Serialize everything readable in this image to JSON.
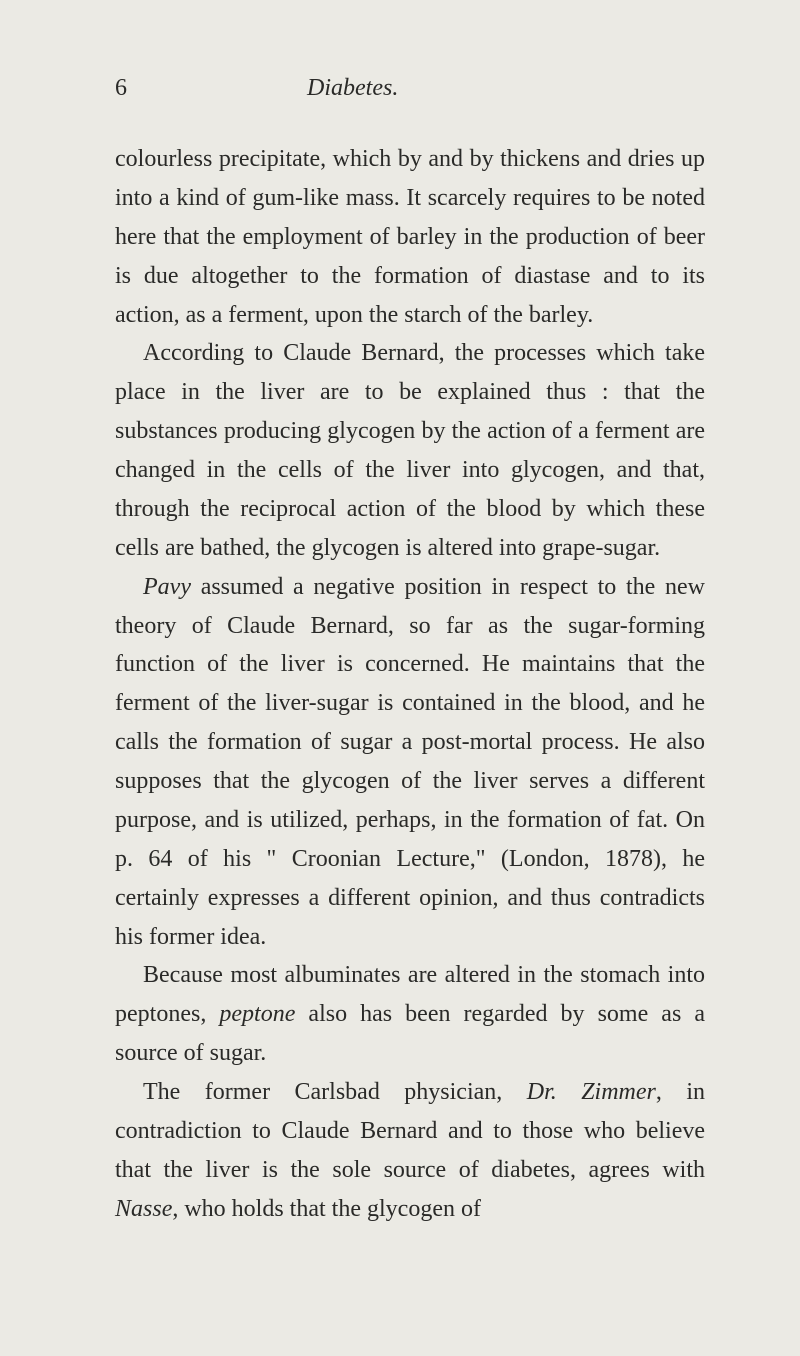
{
  "page": {
    "number": "6",
    "title": "Diabetes.",
    "background_color": "#ebeae4",
    "text_color": "#2a2a28",
    "font_family": "Georgia, serif",
    "body_fontsize": 24,
    "line_height": 1.62
  },
  "para1": {
    "text": "colourless precipitate, which by and by thickens and dries up into a kind of gum-like mass. It scarcely re­quires to be noted here that the employment of barley in the production of beer is due altogether to the formation of diastase and to its action, as a ferment, upon the starch of the barley."
  },
  "para2": {
    "text": "According to Claude Bernard, the processes which take place in the liver are to be explained thus : that the substances producing glycogen by the action of a ferment are changed in the cells of the liver into glycogen, and that, through the reciprocal action of the blood by which these cells are bathed, the glycogen is altered into grape-sugar."
  },
  "para3": {
    "i1": "Pavy",
    "t1": " assumed a negative position in respect to the new theory of Claude Bernard, so far as the sugar-forming function of the liver is concerned. He maintains that the ferment of the liver-sugar is contained in the blood, and he calls the formation of sugar a post-mortal process. He also supposes that the glycogen of the liver serves a different purpose, and is utilized, perhaps, in the formation of fat. On p. 64 of his \" Croonian Lecture,\" (London, 1878), he certainly expresses a different opinion, and thus contradicts his former idea."
  },
  "para4": {
    "t1": "Because most albuminates are altered in the stomach into peptones, ",
    "i1": "peptone",
    "t2": " also has been re­garded by some as a source of sugar."
  },
  "para5": {
    "t1": "The former Carlsbad physician, ",
    "i1": "Dr. Zimmer",
    "t2": ", in contradiction to Claude Bernard and to those who believe that the liver is the sole source of diabetes, agrees with ",
    "i2": "Nasse",
    "t3": ", who holds that the glycogen of"
  }
}
